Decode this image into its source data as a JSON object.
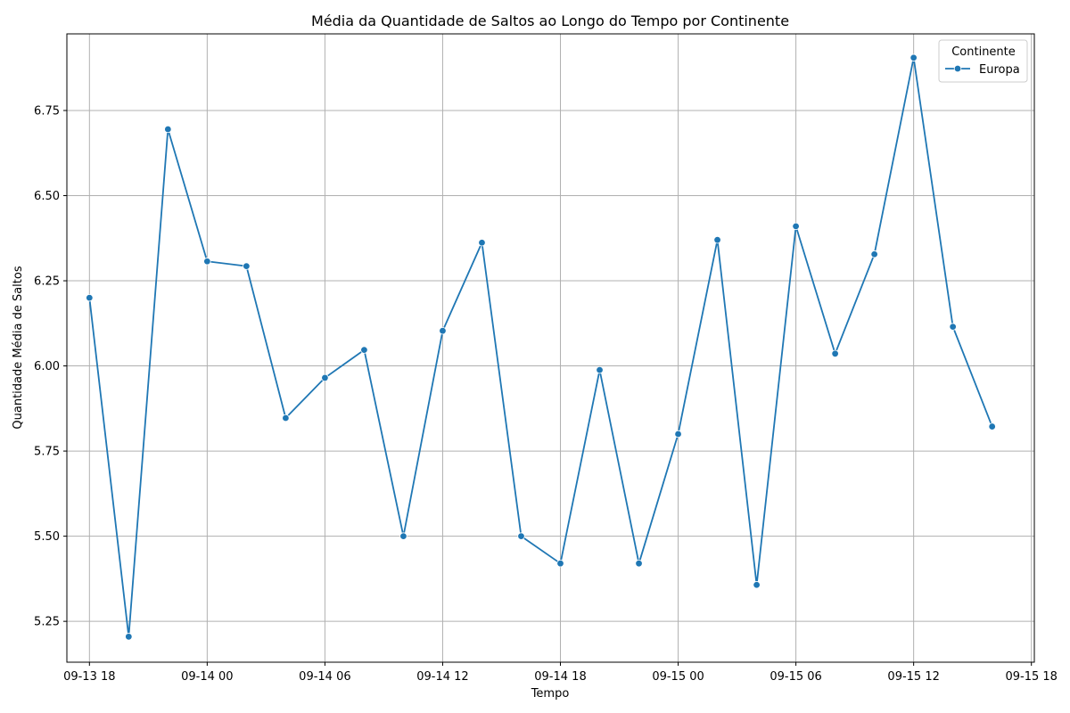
{
  "chart_data": {
    "type": "line",
    "title": "Média da Quantidade de Saltos ao Longo do Tempo por Continente",
    "xlabel": "Tempo",
    "ylabel": "Quantidade Média de Saltos",
    "x_range": [
      "2023-09-13 16:51",
      "2023-09-15 18:09"
    ],
    "ylim": [
      5.13,
      6.975
    ],
    "y_ticks": [
      5.25,
      5.5,
      5.75,
      6.0,
      6.25,
      6.5,
      6.75
    ],
    "y_tick_labels": [
      "5.25",
      "5.50",
      "5.75",
      "6.00",
      "6.25",
      "6.50",
      "6.75"
    ],
    "x_ticks": [
      "2023-09-13 18:00",
      "2023-09-14 00:00",
      "2023-09-14 06:00",
      "2023-09-14 12:00",
      "2023-09-14 18:00",
      "2023-09-15 00:00",
      "2023-09-15 06:00",
      "2023-09-15 12:00",
      "2023-09-15 18:00"
    ],
    "x_tick_labels": [
      "09-13 18",
      "09-14 00",
      "09-14 06",
      "09-14 12",
      "09-14 18",
      "09-15 00",
      "09-15 06",
      "09-15 12",
      "09-15 18"
    ],
    "grid": true,
    "legend": {
      "title": "Continente",
      "placement": "top-right"
    },
    "color": "#1f77b4",
    "series": [
      {
        "name": "Europa",
        "x": [
          "2023-09-13 18:00",
          "2023-09-13 20:00",
          "2023-09-13 22:00",
          "2023-09-14 00:00",
          "2023-09-14 02:00",
          "2023-09-14 04:00",
          "2023-09-14 06:00",
          "2023-09-14 08:00",
          "2023-09-14 10:00",
          "2023-09-14 12:00",
          "2023-09-14 14:00",
          "2023-09-14 16:00",
          "2023-09-14 18:00",
          "2023-09-14 20:00",
          "2023-09-14 22:00",
          "2023-09-15 00:00",
          "2023-09-15 02:00",
          "2023-09-15 04:00",
          "2023-09-15 06:00",
          "2023-09-15 08:00",
          "2023-09-15 10:00",
          "2023-09-15 12:00",
          "2023-09-15 14:00",
          "2023-09-15 16:00"
        ],
        "values": [
          6.2,
          5.205,
          6.695,
          6.307,
          6.293,
          5.847,
          5.965,
          6.047,
          5.5,
          6.103,
          6.362,
          5.5,
          5.42,
          5.988,
          5.42,
          5.8,
          6.37,
          5.357,
          6.41,
          6.036,
          6.328,
          6.905,
          6.115,
          5.822
        ]
      }
    ]
  }
}
